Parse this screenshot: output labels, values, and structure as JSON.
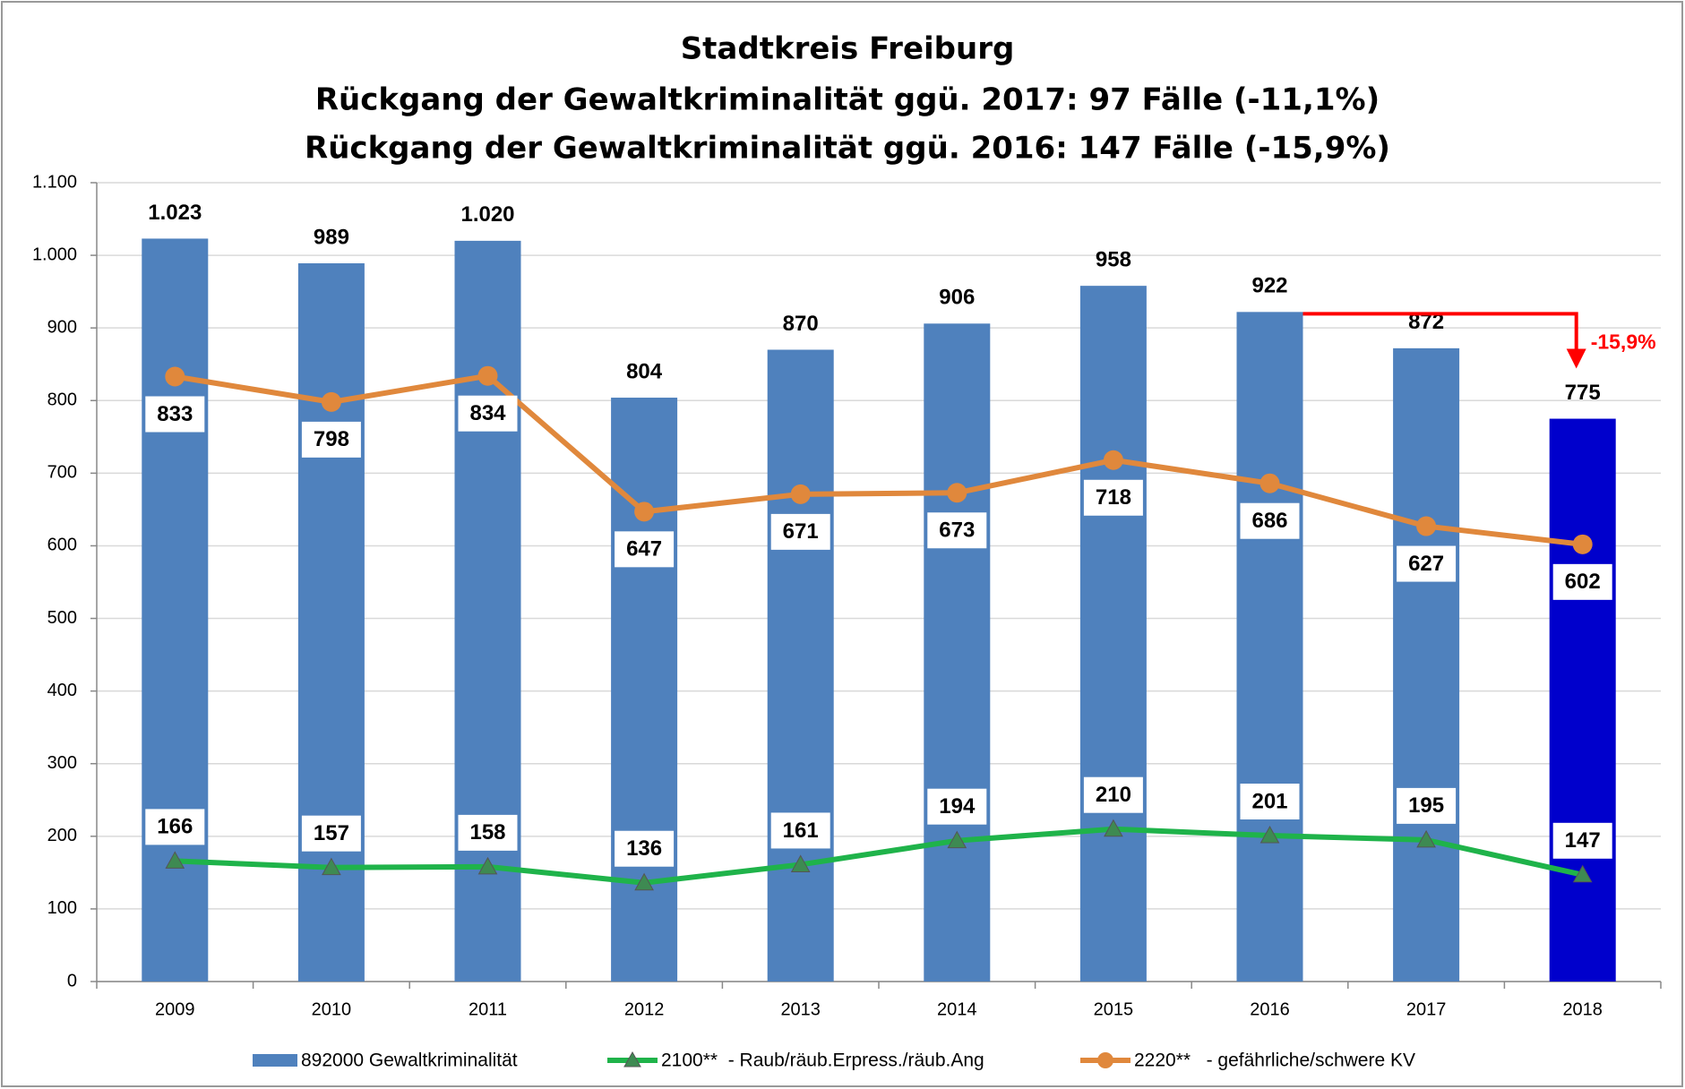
{
  "chart_data": {
    "type": "bar_line",
    "title": [
      "Stadtkreis Freiburg",
      "Rückgang der Gewaltkriminalität ggü. 2017:  97 Fälle (-11,1%)",
      "Rückgang der Gewaltkriminalität ggü. 2016: 147 Fälle (-15,9%)"
    ],
    "categories": [
      "2009",
      "2010",
      "2011",
      "2012",
      "2013",
      "2014",
      "2015",
      "2016",
      "2017",
      "2018"
    ],
    "series": [
      {
        "name": "892000 Gewaltkriminalität",
        "type": "bar",
        "color": "#4f81bd",
        "colors": [
          "#4f81bd",
          "#4f81bd",
          "#4f81bd",
          "#4f81bd",
          "#4f81bd",
          "#4f81bd",
          "#4f81bd",
          "#4f81bd",
          "#4f81bd",
          "#0000cc"
        ],
        "values": [
          1023,
          989,
          1020,
          804,
          870,
          906,
          958,
          922,
          872,
          775
        ],
        "value_labels": [
          "1.023",
          "989",
          "1.020",
          "804",
          "870",
          "906",
          "958",
          "922",
          "872",
          "775"
        ]
      },
      {
        "name": "2100**  - Raub/räub.Erpress./räub.Ang",
        "type": "line",
        "marker": "triangle",
        "color": "#1fb34a",
        "marker_color": "#3e8a52",
        "values": [
          166,
          157,
          158,
          136,
          161,
          194,
          210,
          201,
          195,
          147
        ]
      },
      {
        "name": "2220**   - gefährliche/schwere KV",
        "type": "line",
        "marker": "circle",
        "color": "#e0883c",
        "values": [
          833,
          798,
          834,
          647,
          671,
          673,
          718,
          686,
          627,
          602
        ]
      }
    ],
    "annotation": "-15,9%",
    "ylim": [
      0,
      1100
    ],
    "yticks": [
      0,
      100,
      200,
      300,
      400,
      500,
      600,
      700,
      800,
      900,
      {
        "value": 1000,
        "label": "1.000"
      },
      {
        "value": 1100,
        "label": "1.100"
      }
    ],
    "grid": true,
    "legend": "bottom"
  }
}
